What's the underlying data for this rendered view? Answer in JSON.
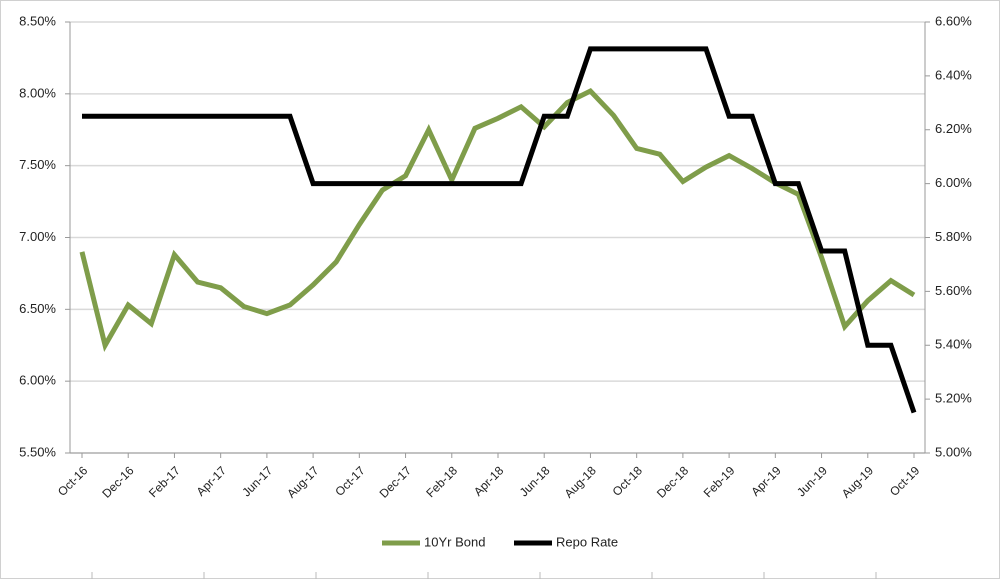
{
  "chart_data": {
    "type": "line",
    "categories": [
      "Oct-16",
      null,
      "Dec-16",
      null,
      "Feb-17",
      null,
      "Apr-17",
      null,
      "Jun-17",
      null,
      "Aug-17",
      null,
      "Oct-17",
      null,
      "Dec-17",
      null,
      "Feb-18",
      null,
      "Apr-18",
      null,
      "Jun-18",
      null,
      "Aug-18",
      null,
      "Oct-18",
      null,
      "Dec-18",
      null,
      "Feb-19",
      null,
      "Apr-19",
      null,
      "Jun-19",
      null,
      "Aug-19",
      null,
      "Oct-19"
    ],
    "series": [
      {
        "name": "10Yr Bond",
        "color": "#7f9d4a",
        "values": [
          6.9,
          6.25,
          6.53,
          6.4,
          6.88,
          6.69,
          6.65,
          6.52,
          6.47,
          6.53,
          6.67,
          6.83,
          7.09,
          7.33,
          7.43,
          7.75,
          7.4,
          7.76,
          7.83,
          7.91,
          7.77,
          7.94,
          8.02,
          7.85,
          7.62,
          7.58,
          7.39,
          7.49,
          7.57,
          7.48,
          7.38,
          7.3,
          6.86,
          6.38,
          6.56,
          6.7,
          6.6
        ]
      },
      {
        "name": "Repo Rate",
        "color": "#000000",
        "axis": "y2",
        "values": [
          6.25,
          6.25,
          6.25,
          6.25,
          6.25,
          6.25,
          6.25,
          6.25,
          6.25,
          6.25,
          6.0,
          6.0,
          6.0,
          6.0,
          6.0,
          6.0,
          6.0,
          6.0,
          6.0,
          6.0,
          6.25,
          6.25,
          6.5,
          6.5,
          6.5,
          6.5,
          6.5,
          6.5,
          6.25,
          6.25,
          6.0,
          6.0,
          5.75,
          5.75,
          5.4,
          5.4,
          5.15
        ]
      }
    ],
    "ylim": [
      5.5,
      8.5
    ],
    "yticks": [
      {
        "value": 5.5,
        "label": "5.50%"
      },
      {
        "value": 6.0,
        "label": "6.00%"
      },
      {
        "value": 6.5,
        "label": "6.50%"
      },
      {
        "value": 7.0,
        "label": "7.00%"
      },
      {
        "value": 7.5,
        "label": "7.50%"
      },
      {
        "value": 8.0,
        "label": "8.00%"
      },
      {
        "value": 8.5,
        "label": "8.50%"
      }
    ],
    "y2lim": [
      5.0,
      6.6
    ],
    "y2ticks": [
      {
        "value": 5.0,
        "label": "5.00%"
      },
      {
        "value": 5.2,
        "label": "5.20%"
      },
      {
        "value": 5.4,
        "label": "5.40%"
      },
      {
        "value": 5.6,
        "label": "5.60%"
      },
      {
        "value": 5.8,
        "label": "5.80%"
      },
      {
        "value": 6.0,
        "label": "6.00%"
      },
      {
        "value": 6.2,
        "label": "6.20%"
      },
      {
        "value": 6.4,
        "label": "6.40%"
      },
      {
        "value": 6.6,
        "label": "6.60%"
      }
    ],
    "grid": true,
    "legend": "bottom"
  }
}
